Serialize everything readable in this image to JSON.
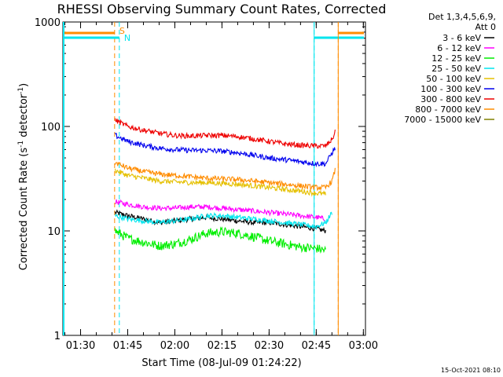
{
  "chart_data": {
    "type": "line",
    "title": "RHESSI Observing Summary Count Rates, Corrected",
    "xlabel": "Start Time (08-Jul-09 01:24:22)",
    "ylabel_main": "Corrected Count Rate (s",
    "ylabel_sup1": "-1",
    "ylabel_mid": " detector",
    "ylabel_sup2": "-1",
    "ylabel_end": ")",
    "yscale": "log",
    "ylim": [
      1,
      1000
    ],
    "xlim": [
      "01:24:22",
      "03:00:40"
    ],
    "x_ticks": [
      "01:30",
      "01:45",
      "02:00",
      "02:15",
      "02:30",
      "02:45",
      "03:00"
    ],
    "y_ticks": [
      "1",
      "10",
      "100",
      "1000"
    ],
    "grid": false,
    "legend_position": "right",
    "legend_header": [
      "Det 1,3,4,5,6,9,",
      "Att 0"
    ],
    "timestamp": "15-Oct-2021 08:10",
    "markers": [
      {
        "label": "S",
        "times": [
          "01:40:50",
          "02:52:00"
        ],
        "color": "#ff8c00"
      },
      {
        "label": "N",
        "times": [
          "01:42:20",
          "02:44:20"
        ],
        "color": "#00e5ee"
      }
    ],
    "series": [
      {
        "name": "3 - 6 keV",
        "color": "#000000",
        "values": [
          [
            "01:41:00",
            15
          ],
          [
            "01:45:00",
            14
          ],
          [
            "01:50:00",
            13
          ],
          [
            "01:55:00",
            12
          ],
          [
            "02:00:00",
            12.5
          ],
          [
            "02:05:00",
            13
          ],
          [
            "02:10:00",
            13.5
          ],
          [
            "02:15:00",
            13
          ],
          [
            "02:20:00",
            12.5
          ],
          [
            "02:25:00",
            12
          ],
          [
            "02:30:00",
            12
          ],
          [
            "02:35:00",
            11.5
          ],
          [
            "02:40:00",
            11
          ],
          [
            "02:45:00",
            10.5
          ],
          [
            "02:48:00",
            10
          ]
        ]
      },
      {
        "name": "6 - 12 keV",
        "color": "#ff00ff",
        "values": [
          [
            "01:41:00",
            19
          ],
          [
            "01:45:00",
            18
          ],
          [
            "01:50:00",
            17
          ],
          [
            "01:55:00",
            16.5
          ],
          [
            "02:00:00",
            16.5
          ],
          [
            "02:05:00",
            17
          ],
          [
            "02:10:00",
            17
          ],
          [
            "02:15:00",
            16.5
          ],
          [
            "02:20:00",
            16
          ],
          [
            "02:25:00",
            15.5
          ],
          [
            "02:30:00",
            15
          ],
          [
            "02:35:00",
            14.5
          ],
          [
            "02:40:00",
            14
          ],
          [
            "02:45:00",
            13.5
          ],
          [
            "02:48:00",
            13
          ]
        ]
      },
      {
        "name": "12 - 25 keV",
        "color": "#00ee00",
        "values": [
          [
            "01:41:00",
            10
          ],
          [
            "01:45:00",
            8.5
          ],
          [
            "01:50:00",
            7.8
          ],
          [
            "01:55:00",
            7.2
          ],
          [
            "02:00:00",
            7.5
          ],
          [
            "02:05:00",
            8.3
          ],
          [
            "02:10:00",
            9.5
          ],
          [
            "02:15:00",
            9.8
          ],
          [
            "02:20:00",
            9.5
          ],
          [
            "02:25:00",
            8.8
          ],
          [
            "02:30:00",
            8.0
          ],
          [
            "02:35:00",
            7.5
          ],
          [
            "02:40:00",
            7.0
          ],
          [
            "02:45:00",
            6.8
          ],
          [
            "02:48:00",
            6.5
          ]
        ]
      },
      {
        "name": "25 - 50 keV",
        "color": "#00e5ee",
        "values": [
          [
            "01:41:00",
            14
          ],
          [
            "01:45:00",
            13
          ],
          [
            "01:50:00",
            12.5
          ],
          [
            "01:55:00",
            12
          ],
          [
            "02:00:00",
            12.5
          ],
          [
            "02:05:00",
            13
          ],
          [
            "02:10:00",
            14
          ],
          [
            "02:15:00",
            14
          ],
          [
            "02:20:00",
            13.5
          ],
          [
            "02:25:00",
            13
          ],
          [
            "02:30:00",
            12.5
          ],
          [
            "02:35:00",
            12
          ],
          [
            "02:40:00",
            11.5
          ],
          [
            "02:45:00",
            11
          ],
          [
            "02:48:00",
            12
          ],
          [
            "02:50:00",
            15
          ]
        ]
      },
      {
        "name": "50 - 100 keV",
        "color": "#e5c000",
        "values": [
          [
            "01:41:00",
            38
          ],
          [
            "01:45:00",
            34
          ],
          [
            "01:50:00",
            32
          ],
          [
            "01:55:00",
            30
          ],
          [
            "02:00:00",
            29.5
          ],
          [
            "02:05:00",
            29
          ],
          [
            "02:10:00",
            29
          ],
          [
            "02:15:00",
            28.5
          ],
          [
            "02:20:00",
            28
          ],
          [
            "02:25:00",
            27
          ],
          [
            "02:30:00",
            26
          ],
          [
            "02:35:00",
            25
          ],
          [
            "02:40:00",
            24
          ],
          [
            "02:45:00",
            23
          ],
          [
            "02:48:00",
            22.5
          ]
        ]
      },
      {
        "name": "100 - 300 keV",
        "color": "#0000ee",
        "values": [
          [
            "01:41:00",
            82
          ],
          [
            "01:45:00",
            72
          ],
          [
            "01:50:00",
            66
          ],
          [
            "01:55:00",
            62
          ],
          [
            "02:00:00",
            60
          ],
          [
            "02:05:00",
            59
          ],
          [
            "02:10:00",
            59
          ],
          [
            "02:15:00",
            58
          ],
          [
            "02:20:00",
            56
          ],
          [
            "02:25:00",
            53
          ],
          [
            "02:30:00",
            50
          ],
          [
            "02:35:00",
            48
          ],
          [
            "02:40:00",
            46
          ],
          [
            "02:45:00",
            44
          ],
          [
            "02:48:00",
            44
          ],
          [
            "02:50:00",
            56
          ],
          [
            "02:51:00",
            62
          ]
        ]
      },
      {
        "name": "300 - 800 keV",
        "color": "#ee0000",
        "values": [
          [
            "01:41:00",
            115
          ],
          [
            "01:45:00",
            100
          ],
          [
            "01:50:00",
            92
          ],
          [
            "01:55:00",
            86
          ],
          [
            "02:00:00",
            82
          ],
          [
            "02:05:00",
            81
          ],
          [
            "02:10:00",
            82
          ],
          [
            "02:15:00",
            82
          ],
          [
            "02:20:00",
            80
          ],
          [
            "02:25:00",
            76
          ],
          [
            "02:30:00",
            72
          ],
          [
            "02:35:00",
            68
          ],
          [
            "02:40:00",
            66
          ],
          [
            "02:45:00",
            65
          ],
          [
            "02:48:00",
            65
          ],
          [
            "02:50:00",
            75
          ],
          [
            "02:51:00",
            88
          ]
        ]
      },
      {
        "name": "800 - 7000 keV",
        "color": "#ff8c00",
        "values": [
          [
            "01:41:00",
            45
          ],
          [
            "01:45:00",
            40
          ],
          [
            "01:50:00",
            37
          ],
          [
            "01:55:00",
            35
          ],
          [
            "02:00:00",
            34
          ],
          [
            "02:05:00",
            33
          ],
          [
            "02:10:00",
            32
          ],
          [
            "02:15:00",
            31.5
          ],
          [
            "02:20:00",
            31
          ],
          [
            "02:25:00",
            30
          ],
          [
            "02:30:00",
            29
          ],
          [
            "02:35:00",
            28
          ],
          [
            "02:40:00",
            27
          ],
          [
            "02:45:00",
            26
          ],
          [
            "02:48:00",
            26
          ],
          [
            "02:50:00",
            30
          ],
          [
            "02:51:00",
            38
          ]
        ]
      },
      {
        "name": "7000 - 15000 keV",
        "color": "#808000",
        "values": []
      }
    ]
  }
}
